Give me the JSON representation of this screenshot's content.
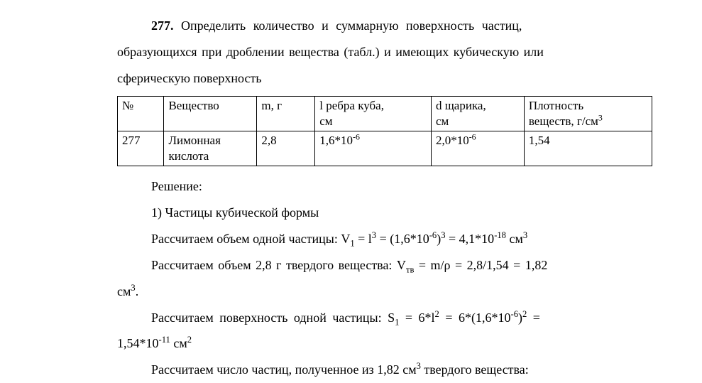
{
  "problem": {
    "number": "277.",
    "text_line1_after_num": "Определить количество и суммарную поверхность частиц,",
    "text_line2": "образующихся при дроблении вещества (табл.) и имеющих кубическую или",
    "text_line3": "сферическую поверхность"
  },
  "table": {
    "headers": {
      "c1": "№",
      "c2": "Вещество",
      "c3": "m, г",
      "c4a": "l ребра куба,",
      "c4b": "см",
      "c5a": "d щарика,",
      "c5b": "см",
      "c6a": "Плотность",
      "c6b_pre": "веществ, г/см",
      "c6b_sup": "3"
    },
    "row": {
      "c1": "277",
      "c2a": "Лимонная",
      "c2b": "кислота",
      "c3": "2,8",
      "c4_pre": "1,6*10",
      "c4_sup": "-6",
      "c5_pre": "2,0*10",
      "c5_sup": "-6",
      "c6": "1,54"
    }
  },
  "solution": {
    "heading": "Решение:",
    "item1": "1) Частицы кубической формы",
    "line_v1_a": "Рассчитаем объем одной частицы: V",
    "line_v1_sub1": "1",
    "line_v1_b": " = l",
    "line_v1_sup1": "3",
    "line_v1_c": " = (1,6*10",
    "line_v1_sup2": "-6",
    "line_v1_d": ")",
    "line_v1_sup3": "3",
    "line_v1_e": " = 4,1*10",
    "line_v1_sup4": "-18",
    "line_v1_f": " см",
    "line_v1_sup5": "3",
    "line_vtv_a": "Рассчитаем объем 2,8 г твердого вещества: V",
    "line_vtv_sub1": "тв",
    "line_vtv_b": " = m/ρ = 2,8/1,54 = 1,82",
    "line_vtv_c": "см",
    "line_vtv_sup1": "3",
    "line_vtv_d": ".",
    "line_s1_a": "Рассчитаем поверхность одной частицы: S",
    "line_s1_sub1": "1",
    "line_s1_b": " = 6*l",
    "line_s1_sup1": "2",
    "line_s1_c": " = 6*(1,6*10",
    "line_s1_sup2": "-6",
    "line_s1_d": ")",
    "line_s1_sup3": "2",
    "line_s1_e": " =",
    "line_s1_f": "1,54*10",
    "line_s1_sup4": "-11",
    "line_s1_g": " см",
    "line_s1_sup5": "2",
    "line_n_a": "Рассчитаем число частиц, полученное из 1,82 см",
    "line_n_sup1": "3",
    "line_n_b": " твердого вещества:"
  }
}
